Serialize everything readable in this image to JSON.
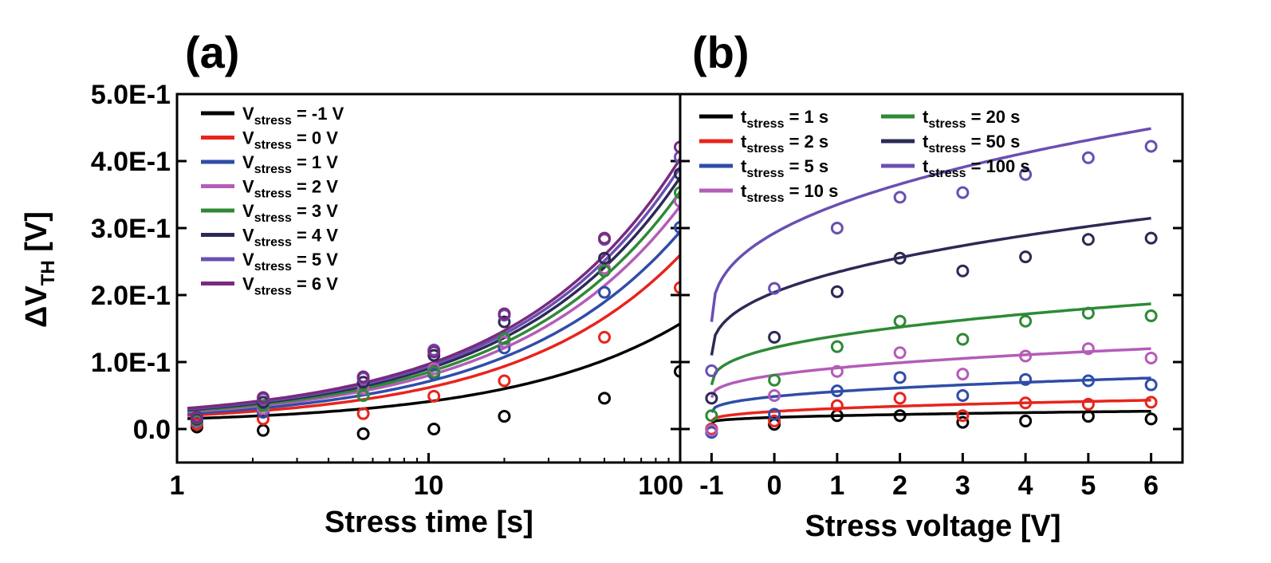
{
  "chart_data": [
    {
      "type": "scatter",
      "panel_label": "(a)",
      "title": "",
      "xlabel": "Stress time [s]",
      "ylabel_main": "ΔV",
      "ylabel_sub": "TH",
      "ylabel_unit": " [V]",
      "xscale": "log",
      "xlim": [
        1,
        100
      ],
      "ylim": [
        -0.05,
        0.5
      ],
      "xticks": [
        1,
        10,
        100
      ],
      "xtick_labels": [
        "1",
        "10",
        "100"
      ],
      "yticks": [
        0.0,
        0.1,
        0.2,
        0.3,
        0.4,
        0.5
      ],
      "ytick_labels": [
        "0.0",
        "1.0E-1",
        "2.0E-1",
        "3.0E-1",
        "4.0E-1",
        "5.0E-1"
      ],
      "legend_position": "top-left",
      "x": [
        1.2,
        2.2,
        5.5,
        10.5,
        20,
        50,
        100
      ],
      "series": [
        {
          "legend_prefix": "V",
          "legend_sub": "stress",
          "legend_suffix": " = -1 V",
          "color": "#000000",
          "points": [
            0.003,
            -0.002,
            -0.007,
            0.0,
            0.019,
            0.046,
            0.086
          ],
          "fit": {
            "a": 0.0075,
            "b": 0.0075,
            "p": 0.65
          }
        },
        {
          "legend_prefix": "V",
          "legend_sub": "stress",
          "legend_suffix": " = 0 V",
          "color": "#e8241c",
          "points": [
            0.007,
            0.015,
            0.023,
            0.049,
            0.072,
            0.137,
            0.211
          ],
          "fit": {
            "a": 0.008,
            "b": 0.0115,
            "p": 0.67
          }
        },
        {
          "legend_prefix": "V",
          "legend_sub": "stress",
          "legend_suffix": " = 1 V",
          "color": "#2f4da8",
          "points": [
            0.011,
            0.025,
            0.05,
            0.082,
            0.121,
            0.204,
            0.301
          ],
          "fit": {
            "a": 0.0085,
            "b": 0.0137,
            "p": 0.66
          }
        },
        {
          "legend_prefix": "V",
          "legend_sub": "stress",
          "legend_suffix": " = 2 V",
          "color": "#b45cb8",
          "points": [
            0.012,
            0.03,
            0.06,
            0.09,
            0.13,
            0.24,
            0.34
          ],
          "fit": {
            "a": 0.009,
            "b": 0.0155,
            "p": 0.66
          }
        },
        {
          "legend_prefix": "V",
          "legend_sub": "stress",
          "legend_suffix": " = 3 V",
          "color": "#2e8a35",
          "points": [
            0.013,
            0.035,
            0.05,
            0.085,
            0.135,
            0.236,
            0.353
          ],
          "fit": {
            "a": 0.0095,
            "b": 0.0165,
            "p": 0.66
          }
        },
        {
          "legend_prefix": "V",
          "legend_sub": "stress",
          "legend_suffix": " = 4 V",
          "color": "#2c2a55",
          "points": [
            0.015,
            0.04,
            0.07,
            0.11,
            0.16,
            0.255,
            0.381
          ],
          "fit": {
            "a": 0.01,
            "b": 0.0175,
            "p": 0.66
          }
        },
        {
          "legend_prefix": "V",
          "legend_sub": "stress",
          "legend_suffix": " = 5 V",
          "color": "#6a4fb3",
          "points": [
            0.017,
            0.045,
            0.076,
            0.118,
            0.17,
            0.283,
            0.406
          ],
          "fit": {
            "a": 0.0105,
            "b": 0.0182,
            "p": 0.66
          }
        },
        {
          "legend_prefix": "V",
          "legend_sub": "stress",
          "legend_suffix": " = 6 V",
          "color": "#7a2a7e",
          "points": [
            0.018,
            0.047,
            0.078,
            0.115,
            0.172,
            0.285,
            0.421
          ],
          "fit": {
            "a": 0.011,
            "b": 0.0188,
            "p": 0.66
          }
        }
      ]
    },
    {
      "type": "scatter",
      "panel_label": "(b)",
      "title": "",
      "xlabel": "Stress voltage [V]",
      "xscale": "linear",
      "xlim": [
        -1.5,
        6.5
      ],
      "ylim": [
        -0.05,
        0.5
      ],
      "xticks": [
        -1,
        0,
        1,
        2,
        3,
        4,
        5,
        6
      ],
      "xtick_labels": [
        "-1",
        "0",
        "1",
        "2",
        "3",
        "4",
        "5",
        "6"
      ],
      "yticks": [
        0.0,
        0.1,
        0.2,
        0.3,
        0.4,
        0.5
      ],
      "legend_position": "top-left",
      "x": [
        -1,
        0,
        1,
        2,
        3,
        4,
        5,
        6
      ],
      "series": [
        {
          "legend_prefix": "t",
          "legend_sub": "stress",
          "legend_suffix": " = 1 s",
          "color": "#000000",
          "points": [
            0.0,
            0.007,
            0.02,
            0.02,
            0.01,
            0.012,
            0.019,
            0.015
          ],
          "fit": {
            "c": 0.0095,
            "b": 0.0157,
            "p": 0.4
          }
        },
        {
          "legend_prefix": "t",
          "legend_sub": "stress",
          "legend_suffix": " = 2 s",
          "color": "#e8241c",
          "points": [
            0.0,
            0.012,
            0.035,
            0.046,
            0.02,
            0.039,
            0.037,
            0.04
          ],
          "fit": {
            "c": 0.012,
            "b": 0.0285,
            "p": 0.4
          }
        },
        {
          "legend_prefix": "t",
          "legend_sub": "stress",
          "legend_suffix": " = 5 s",
          "color": "#2f4da8",
          "points": [
            -0.005,
            0.022,
            0.057,
            0.077,
            0.05,
            0.074,
            0.072,
            0.066
          ],
          "fit": {
            "c": 0.025,
            "b": 0.047,
            "p": 0.4
          }
        },
        {
          "legend_prefix": "t",
          "legend_sub": "stress",
          "legend_suffix": " = 10 s",
          "color": "#b45cb8",
          "points": [
            -0.002,
            0.05,
            0.086,
            0.114,
            0.082,
            0.109,
            0.12,
            0.106
          ],
          "fit": {
            "c": 0.047,
            "b": 0.067,
            "p": 0.4
          }
        },
        {
          "legend_prefix": "t",
          "legend_sub": "stress",
          "legend_suffix": " = 20 s",
          "color": "#2e8a35",
          "points": [
            0.02,
            0.073,
            0.123,
            0.161,
            0.134,
            0.161,
            0.173,
            0.169
          ],
          "fit": {
            "c": 0.066,
            "b": 0.111,
            "p": 0.4
          }
        },
        {
          "legend_prefix": "t",
          "legend_sub": "stress",
          "legend_suffix": " = 50 s",
          "color": "#2c2a55",
          "points": [
            0.046,
            0.137,
            0.205,
            0.255,
            0.236,
            0.257,
            0.283,
            0.285
          ],
          "fit": {
            "c": 0.11,
            "b": 0.188,
            "p": 0.4
          }
        },
        {
          "legend_prefix": "t",
          "legend_sub": "stress",
          "legend_suffix": " = 100 s",
          "color": "#6a4fb3",
          "points": [
            0.087,
            0.21,
            0.3,
            0.346,
            0.353,
            0.38,
            0.405,
            0.422
          ],
          "fit": {
            "c": 0.16,
            "b": 0.265,
            "p": 0.4
          }
        }
      ]
    }
  ]
}
